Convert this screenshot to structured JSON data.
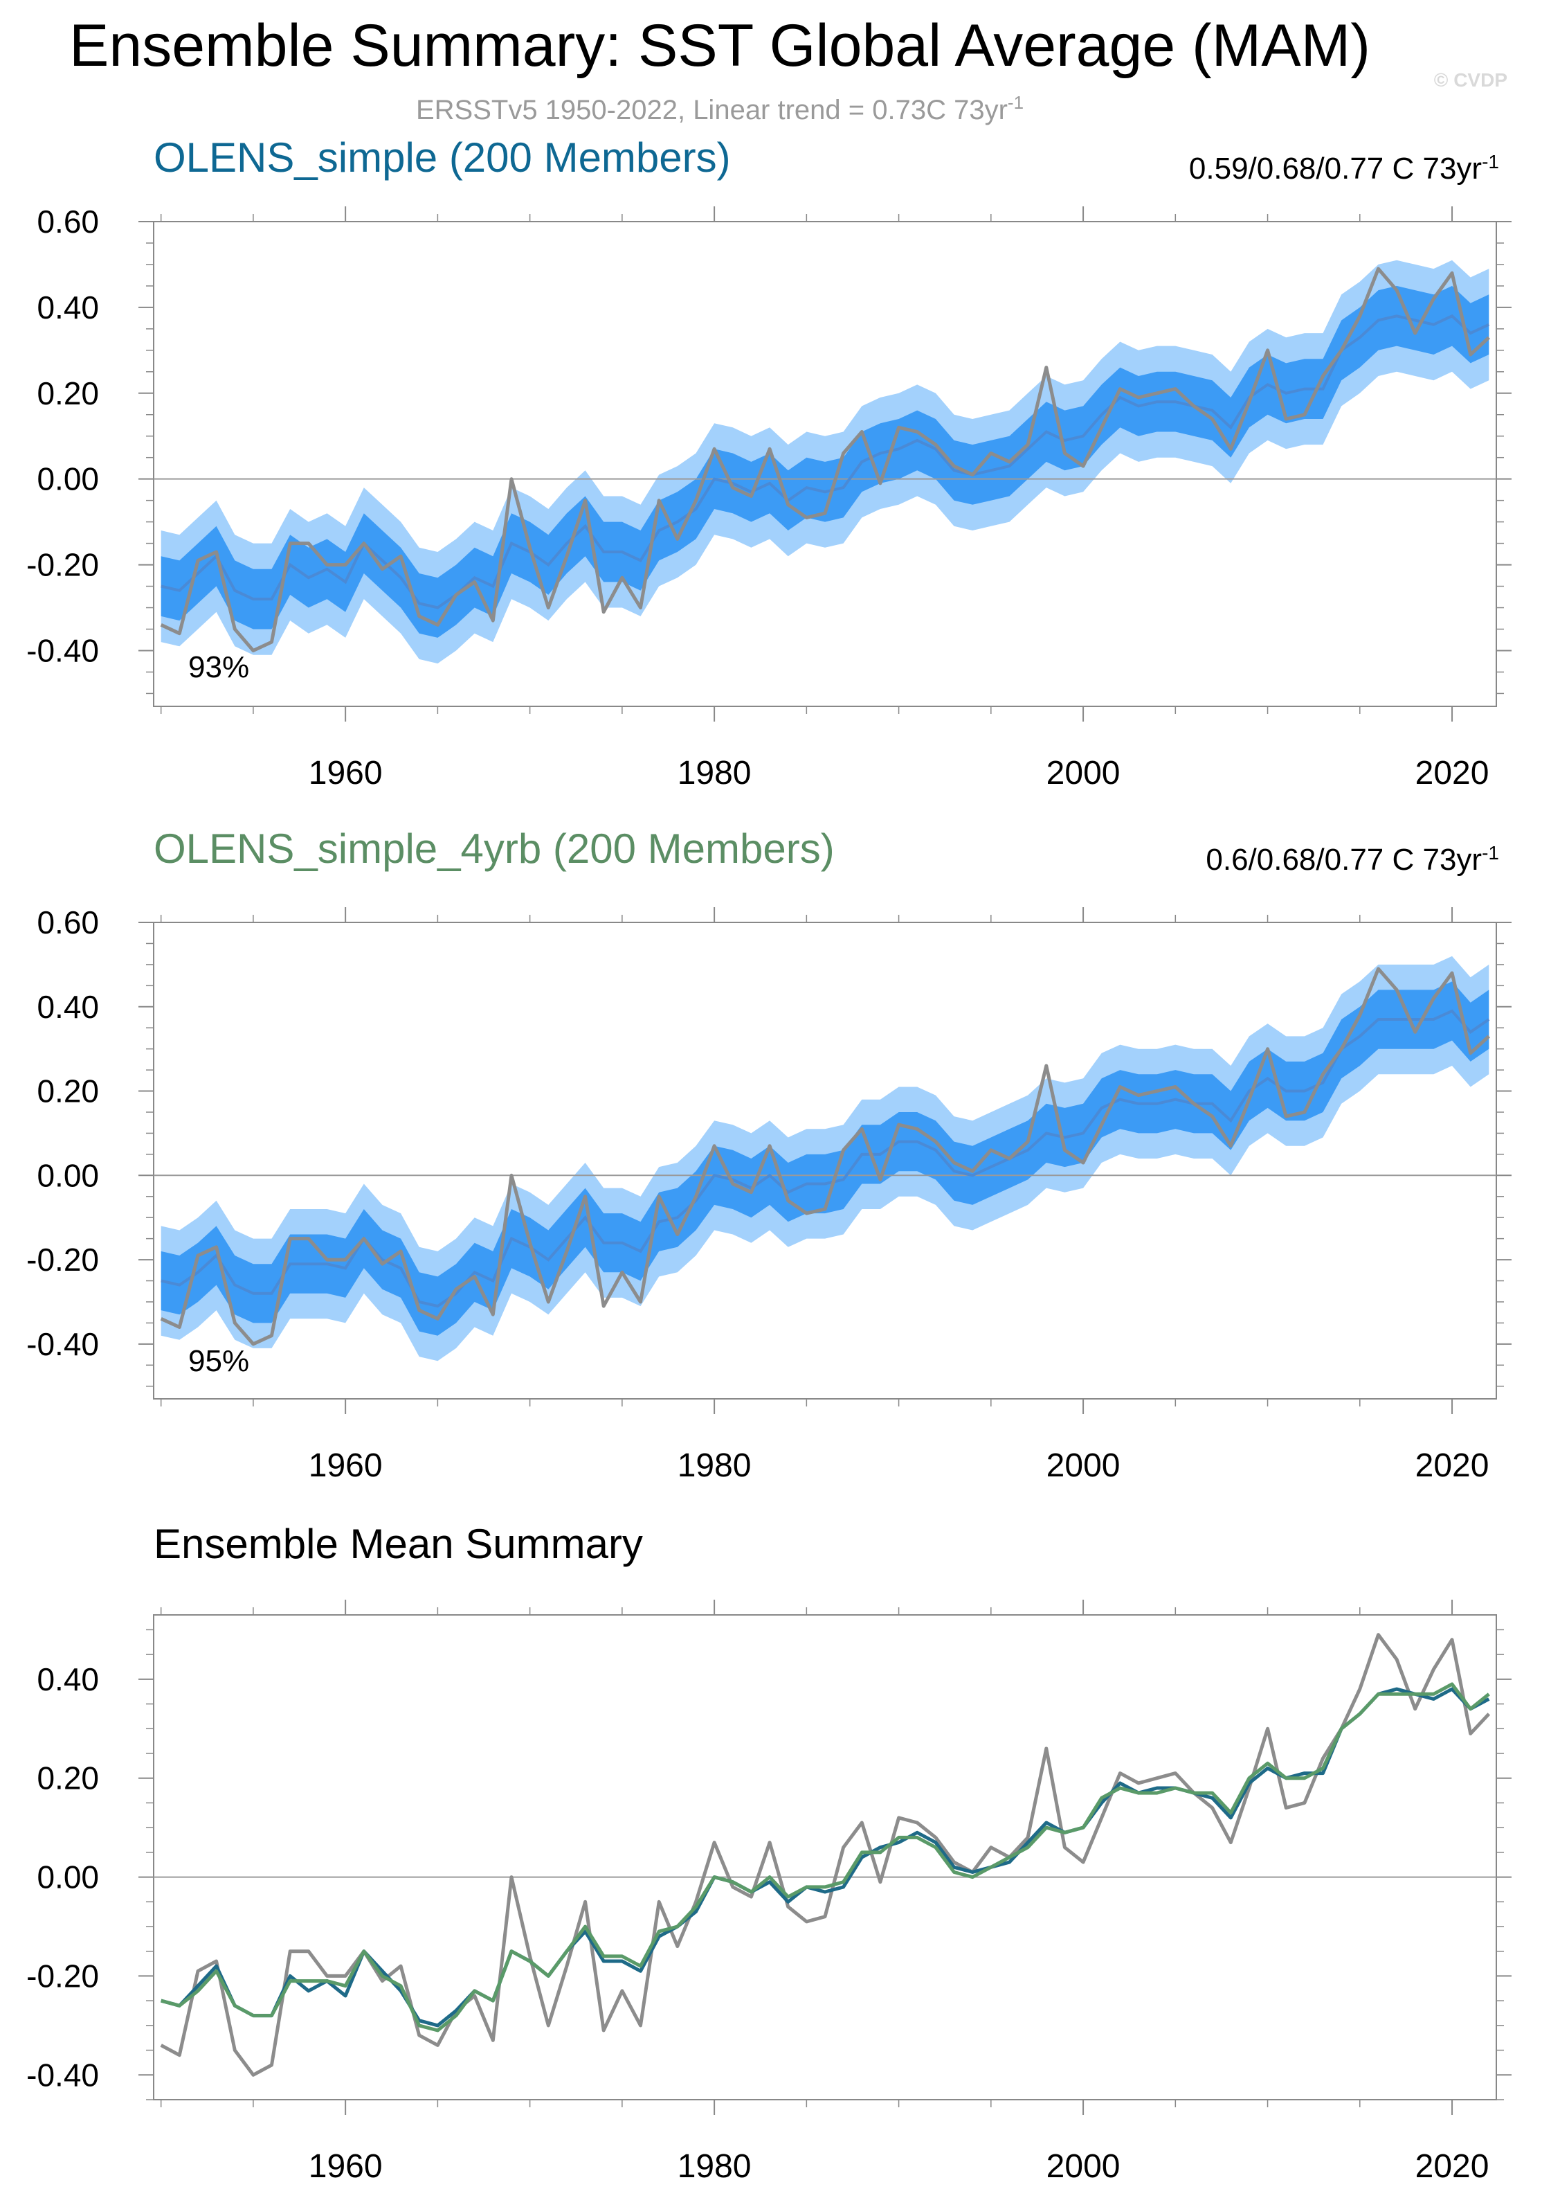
{
  "figure": {
    "title": "Ensemble Summary: SST Global Average (MAM)",
    "subtitle_main": "ERSSTv5 1950-2022, Linear trend = 0.73C 73yr",
    "subtitle_sup": "-1",
    "watermark": "© CVDP"
  },
  "colors": {
    "band_outer": "#a3d1fc",
    "band_inner": "#3c9bf5",
    "ensemble_mean": "#4a8ad6",
    "observed": "#8c8c8c",
    "zero_line": "#9a9a9a",
    "axis": "#888888",
    "panel1_title": "#0e6893",
    "panel2_title": "#5b8e64",
    "mean1_line": "#1e6a88",
    "mean2_line": "#5a9a68"
  },
  "panels": [
    {
      "title": "OLENS_simple (200 Members)",
      "trend_text": "0.59/0.68/0.77 C 73yr",
      "trend_sup": "-1",
      "pct_label": "93%"
    },
    {
      "title": "OLENS_simple_4yrb (200 Members)",
      "trend_text": "0.6/0.68/0.77 C 73yr",
      "trend_sup": "-1",
      "pct_label": "95%"
    },
    {
      "title": "Ensemble Mean Summary"
    }
  ],
  "chart_data": [
    {
      "type": "area",
      "title": "OLENS_simple (200 Members)",
      "xlim": [
        1949.6,
        2022.4
      ],
      "ylim": [
        -0.53,
        0.6
      ],
      "xticks": [
        1960,
        1980,
        2000,
        2020
      ],
      "xtick_labels": [
        "1960",
        "1980",
        "2000",
        "2020"
      ],
      "yticks": [
        -0.4,
        -0.2,
        0.0,
        0.2,
        0.4,
        0.6
      ],
      "ytick_labels": [
        "-0.40",
        "-0.20",
        "0.00",
        "0.20",
        "0.40",
        "0.60"
      ],
      "start_year": 1950,
      "band_outer_offset": 0.13,
      "band_inner_offset": 0.07,
      "ensemble_mean": [
        -0.25,
        -0.26,
        -0.22,
        -0.18,
        -0.26,
        -0.28,
        -0.28,
        -0.2,
        -0.23,
        -0.21,
        -0.24,
        -0.15,
        -0.19,
        -0.23,
        -0.29,
        -0.3,
        -0.27,
        -0.23,
        -0.25,
        -0.15,
        -0.17,
        -0.2,
        -0.15,
        -0.11,
        -0.17,
        -0.17,
        -0.19,
        -0.12,
        -0.1,
        -0.07,
        0.0,
        -0.01,
        -0.03,
        -0.01,
        -0.05,
        -0.02,
        -0.03,
        -0.02,
        0.04,
        0.06,
        0.07,
        0.09,
        0.07,
        0.02,
        0.01,
        0.02,
        0.03,
        0.07,
        0.11,
        0.09,
        0.1,
        0.15,
        0.19,
        0.17,
        0.18,
        0.18,
        0.17,
        0.16,
        0.12,
        0.19,
        0.22,
        0.2,
        0.21,
        0.21,
        0.3,
        0.33,
        0.37,
        0.38,
        0.37,
        0.36,
        0.38,
        0.34,
        0.36
      ],
      "observed": [
        -0.34,
        -0.36,
        -0.19,
        -0.17,
        -0.35,
        -0.4,
        -0.38,
        -0.15,
        -0.15,
        -0.2,
        -0.2,
        -0.15,
        -0.21,
        -0.18,
        -0.32,
        -0.34,
        -0.27,
        -0.24,
        -0.33,
        0.0,
        -0.16,
        -0.3,
        -0.18,
        -0.05,
        -0.31,
        -0.23,
        -0.3,
        -0.05,
        -0.14,
        -0.05,
        0.07,
        -0.02,
        -0.04,
        0.07,
        -0.06,
        -0.09,
        -0.08,
        0.06,
        0.11,
        -0.01,
        0.12,
        0.11,
        0.08,
        0.03,
        0.01,
        0.06,
        0.04,
        0.08,
        0.26,
        0.06,
        0.03,
        0.12,
        0.21,
        0.19,
        0.2,
        0.21,
        0.17,
        0.14,
        0.07,
        0.18,
        0.3,
        0.14,
        0.15,
        0.24,
        0.3,
        0.38,
        0.49,
        0.44,
        0.34,
        0.42,
        0.48,
        0.29,
        0.33
      ]
    },
    {
      "type": "area",
      "title": "OLENS_simple_4yrb (200 Members)",
      "xlim": [
        1949.6,
        2022.4
      ],
      "ylim": [
        -0.53,
        0.6
      ],
      "xticks": [
        1960,
        1980,
        2000,
        2020
      ],
      "xtick_labels": [
        "1960",
        "1980",
        "2000",
        "2020"
      ],
      "yticks": [
        -0.4,
        -0.2,
        0.0,
        0.2,
        0.4,
        0.6
      ],
      "ytick_labels": [
        "-0.40",
        "-0.20",
        "0.00",
        "0.20",
        "0.40",
        "0.60"
      ],
      "start_year": 1950,
      "band_outer_offset": 0.13,
      "band_inner_offset": 0.07,
      "ensemble_mean": [
        -0.25,
        -0.26,
        -0.23,
        -0.19,
        -0.26,
        -0.28,
        -0.28,
        -0.21,
        -0.21,
        -0.21,
        -0.22,
        -0.15,
        -0.2,
        -0.22,
        -0.3,
        -0.31,
        -0.28,
        -0.23,
        -0.25,
        -0.15,
        -0.17,
        -0.2,
        -0.15,
        -0.1,
        -0.16,
        -0.16,
        -0.18,
        -0.11,
        -0.1,
        -0.06,
        0.0,
        -0.01,
        -0.03,
        0.0,
        -0.04,
        -0.02,
        -0.02,
        -0.01,
        0.05,
        0.05,
        0.08,
        0.08,
        0.06,
        0.01,
        0.0,
        0.02,
        0.04,
        0.06,
        0.1,
        0.09,
        0.1,
        0.16,
        0.18,
        0.17,
        0.17,
        0.18,
        0.17,
        0.17,
        0.13,
        0.2,
        0.23,
        0.2,
        0.2,
        0.22,
        0.3,
        0.33,
        0.37,
        0.37,
        0.37,
        0.37,
        0.39,
        0.34,
        0.37
      ],
      "observed": [
        -0.34,
        -0.36,
        -0.19,
        -0.17,
        -0.35,
        -0.4,
        -0.38,
        -0.15,
        -0.15,
        -0.2,
        -0.2,
        -0.15,
        -0.21,
        -0.18,
        -0.32,
        -0.34,
        -0.27,
        -0.24,
        -0.33,
        0.0,
        -0.16,
        -0.3,
        -0.18,
        -0.05,
        -0.31,
        -0.23,
        -0.3,
        -0.05,
        -0.14,
        -0.05,
        0.07,
        -0.02,
        -0.04,
        0.07,
        -0.06,
        -0.09,
        -0.08,
        0.06,
        0.11,
        -0.01,
        0.12,
        0.11,
        0.08,
        0.03,
        0.01,
        0.06,
        0.04,
        0.08,
        0.26,
        0.06,
        0.03,
        0.12,
        0.21,
        0.19,
        0.2,
        0.21,
        0.17,
        0.14,
        0.07,
        0.18,
        0.3,
        0.14,
        0.15,
        0.24,
        0.3,
        0.38,
        0.49,
        0.44,
        0.34,
        0.42,
        0.48,
        0.29,
        0.33
      ]
    },
    {
      "type": "line",
      "title": "Ensemble Mean Summary",
      "xlim": [
        1949.6,
        2022.4
      ],
      "ylim": [
        -0.45,
        0.53
      ],
      "xticks": [
        1960,
        1980,
        2000,
        2020
      ],
      "xtick_labels": [
        "1960",
        "1980",
        "2000",
        "2020"
      ],
      "yticks": [
        -0.4,
        -0.2,
        0.0,
        0.2,
        0.4
      ],
      "ytick_labels": [
        "-0.40",
        "-0.20",
        "0.00",
        "0.20",
        "0.40"
      ],
      "start_year": 1950,
      "series": [
        {
          "name": "OLENS_simple",
          "color_key": "mean1_line",
          "values": [
            -0.25,
            -0.26,
            -0.22,
            -0.18,
            -0.26,
            -0.28,
            -0.28,
            -0.2,
            -0.23,
            -0.21,
            -0.24,
            -0.15,
            -0.19,
            -0.23,
            -0.29,
            -0.3,
            -0.27,
            -0.23,
            -0.25,
            -0.15,
            -0.17,
            -0.2,
            -0.15,
            -0.11,
            -0.17,
            -0.17,
            -0.19,
            -0.12,
            -0.1,
            -0.07,
            0.0,
            -0.01,
            -0.03,
            -0.01,
            -0.05,
            -0.02,
            -0.03,
            -0.02,
            0.04,
            0.06,
            0.07,
            0.09,
            0.07,
            0.02,
            0.01,
            0.02,
            0.03,
            0.07,
            0.11,
            0.09,
            0.1,
            0.15,
            0.19,
            0.17,
            0.18,
            0.18,
            0.17,
            0.16,
            0.12,
            0.19,
            0.22,
            0.2,
            0.21,
            0.21,
            0.3,
            0.33,
            0.37,
            0.38,
            0.37,
            0.36,
            0.38,
            0.34,
            0.36
          ]
        },
        {
          "name": "OLENS_simple_4yrb",
          "color_key": "mean2_line",
          "values": [
            -0.25,
            -0.26,
            -0.23,
            -0.19,
            -0.26,
            -0.28,
            -0.28,
            -0.21,
            -0.21,
            -0.21,
            -0.22,
            -0.15,
            -0.2,
            -0.22,
            -0.3,
            -0.31,
            -0.28,
            -0.23,
            -0.25,
            -0.15,
            -0.17,
            -0.2,
            -0.15,
            -0.1,
            -0.16,
            -0.16,
            -0.18,
            -0.11,
            -0.1,
            -0.06,
            0.0,
            -0.01,
            -0.03,
            0.0,
            -0.04,
            -0.02,
            -0.02,
            -0.01,
            0.05,
            0.05,
            0.08,
            0.08,
            0.06,
            0.01,
            0.0,
            0.02,
            0.04,
            0.06,
            0.1,
            0.09,
            0.1,
            0.16,
            0.18,
            0.17,
            0.17,
            0.18,
            0.17,
            0.17,
            0.13,
            0.2,
            0.23,
            0.2,
            0.2,
            0.22,
            0.3,
            0.33,
            0.37,
            0.37,
            0.37,
            0.37,
            0.39,
            0.34,
            0.37
          ]
        },
        {
          "name": "ERSSTv5",
          "color_key": "observed",
          "values": [
            -0.34,
            -0.36,
            -0.19,
            -0.17,
            -0.35,
            -0.4,
            -0.38,
            -0.15,
            -0.15,
            -0.2,
            -0.2,
            -0.15,
            -0.21,
            -0.18,
            -0.32,
            -0.34,
            -0.27,
            -0.24,
            -0.33,
            0.0,
            -0.16,
            -0.3,
            -0.18,
            -0.05,
            -0.31,
            -0.23,
            -0.3,
            -0.05,
            -0.14,
            -0.05,
            0.07,
            -0.02,
            -0.04,
            0.07,
            -0.06,
            -0.09,
            -0.08,
            0.06,
            0.11,
            -0.01,
            0.12,
            0.11,
            0.08,
            0.03,
            0.01,
            0.06,
            0.04,
            0.08,
            0.26,
            0.06,
            0.03,
            0.12,
            0.21,
            0.19,
            0.2,
            0.21,
            0.17,
            0.14,
            0.07,
            0.18,
            0.3,
            0.14,
            0.15,
            0.24,
            0.3,
            0.38,
            0.49,
            0.44,
            0.34,
            0.42,
            0.48,
            0.29,
            0.33
          ]
        }
      ]
    }
  ]
}
